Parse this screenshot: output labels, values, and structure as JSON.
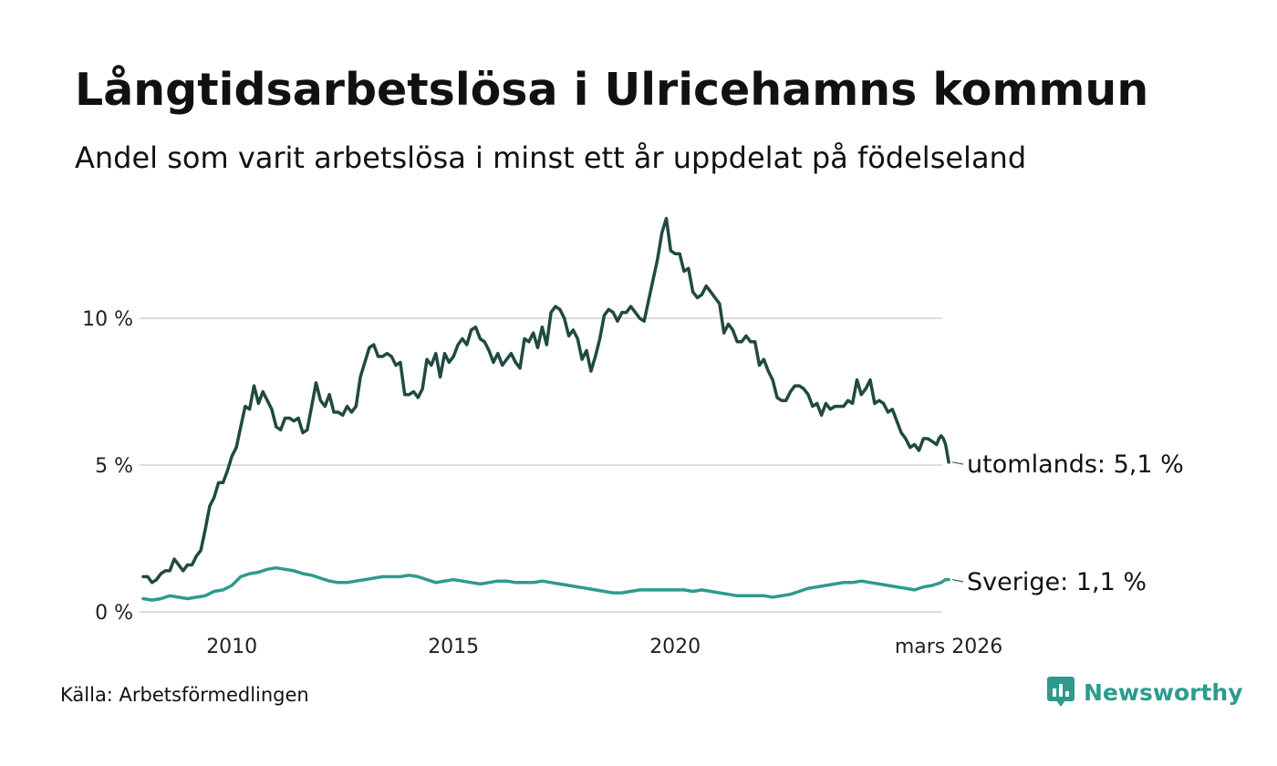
{
  "title": "Långtidsarbetslösa i Ulricehamns kommun",
  "subtitle": "Andel som varit arbetslösa i minst ett år uppdelat på födelseland",
  "source": "Källa: Arbetsförmedlingen",
  "brand": {
    "name": "Newsworthy",
    "icon": "newsworthy-logo-icon",
    "color": "#2e9a8e"
  },
  "chart_data": {
    "type": "line",
    "title": "Långtidsarbetslösa i Ulricehamns kommun",
    "xlabel": "",
    "ylabel": "",
    "ylim": [
      0,
      14
    ],
    "grid": true,
    "y_ticks": [
      {
        "value": 0,
        "label": "0 %"
      },
      {
        "value": 5,
        "label": "5 %"
      },
      {
        "value": 10,
        "label": "10 %"
      }
    ],
    "x_ticks": [
      {
        "value": 2010,
        "label": "2010"
      },
      {
        "value": 2015,
        "label": "2015"
      },
      {
        "value": 2020,
        "label": "2020"
      },
      {
        "value": 2026.17,
        "label": "mars 2026"
      }
    ],
    "series": [
      {
        "name": "utomlands",
        "label": "utomlands: 5,1 %",
        "color": "#1f4a42",
        "points": [
          [
            2008.0,
            1.2
          ],
          [
            2008.1,
            1.2
          ],
          [
            2008.2,
            1.0
          ],
          [
            2008.3,
            1.1
          ],
          [
            2008.4,
            1.3
          ],
          [
            2008.5,
            1.4
          ],
          [
            2008.6,
            1.4
          ],
          [
            2008.7,
            1.8
          ],
          [
            2008.8,
            1.6
          ],
          [
            2008.9,
            1.4
          ],
          [
            2009.0,
            1.6
          ],
          [
            2009.1,
            1.6
          ],
          [
            2009.2,
            1.9
          ],
          [
            2009.3,
            2.1
          ],
          [
            2009.4,
            2.8
          ],
          [
            2009.5,
            3.6
          ],
          [
            2009.6,
            3.9
          ],
          [
            2009.7,
            4.4
          ],
          [
            2009.8,
            4.4
          ],
          [
            2009.9,
            4.8
          ],
          [
            2010.0,
            5.3
          ],
          [
            2010.1,
            5.6
          ],
          [
            2010.2,
            6.3
          ],
          [
            2010.3,
            7.0
          ],
          [
            2010.4,
            6.9
          ],
          [
            2010.5,
            7.7
          ],
          [
            2010.6,
            7.1
          ],
          [
            2010.7,
            7.5
          ],
          [
            2010.8,
            7.2
          ],
          [
            2010.9,
            6.9
          ],
          [
            2011.0,
            6.3
          ],
          [
            2011.1,
            6.2
          ],
          [
            2011.2,
            6.6
          ],
          [
            2011.3,
            6.6
          ],
          [
            2011.4,
            6.5
          ],
          [
            2011.5,
            6.6
          ],
          [
            2011.6,
            6.1
          ],
          [
            2011.7,
            6.2
          ],
          [
            2011.8,
            7.0
          ],
          [
            2011.9,
            7.8
          ],
          [
            2012.0,
            7.2
          ],
          [
            2012.1,
            7.0
          ],
          [
            2012.2,
            7.4
          ],
          [
            2012.3,
            6.8
          ],
          [
            2012.4,
            6.8
          ],
          [
            2012.5,
            6.7
          ],
          [
            2012.6,
            7.0
          ],
          [
            2012.7,
            6.8
          ],
          [
            2012.8,
            7.0
          ],
          [
            2012.9,
            8.0
          ],
          [
            2013.0,
            8.5
          ],
          [
            2013.1,
            9.0
          ],
          [
            2013.2,
            9.1
          ],
          [
            2013.3,
            8.7
          ],
          [
            2013.4,
            8.7
          ],
          [
            2013.5,
            8.8
          ],
          [
            2013.6,
            8.7
          ],
          [
            2013.7,
            8.4
          ],
          [
            2013.8,
            8.5
          ],
          [
            2013.9,
            7.4
          ],
          [
            2014.0,
            7.4
          ],
          [
            2014.1,
            7.5
          ],
          [
            2014.2,
            7.3
          ],
          [
            2014.3,
            7.6
          ],
          [
            2014.4,
            8.6
          ],
          [
            2014.5,
            8.4
          ],
          [
            2014.6,
            8.8
          ],
          [
            2014.7,
            8.0
          ],
          [
            2014.8,
            8.8
          ],
          [
            2014.9,
            8.5
          ],
          [
            2015.0,
            8.7
          ],
          [
            2015.1,
            9.1
          ],
          [
            2015.2,
            9.3
          ],
          [
            2015.3,
            9.1
          ],
          [
            2015.4,
            9.6
          ],
          [
            2015.5,
            9.7
          ],
          [
            2015.6,
            9.3
          ],
          [
            2015.7,
            9.2
          ],
          [
            2015.8,
            8.9
          ],
          [
            2015.9,
            8.5
          ],
          [
            2016.0,
            8.8
          ],
          [
            2016.1,
            8.4
          ],
          [
            2016.2,
            8.6
          ],
          [
            2016.3,
            8.8
          ],
          [
            2016.4,
            8.5
          ],
          [
            2016.5,
            8.3
          ],
          [
            2016.6,
            9.3
          ],
          [
            2016.7,
            9.2
          ],
          [
            2016.8,
            9.5
          ],
          [
            2016.9,
            9.0
          ],
          [
            2017.0,
            9.7
          ],
          [
            2017.1,
            9.1
          ],
          [
            2017.2,
            10.2
          ],
          [
            2017.3,
            10.4
          ],
          [
            2017.4,
            10.3
          ],
          [
            2017.5,
            10.0
          ],
          [
            2017.6,
            9.4
          ],
          [
            2017.7,
            9.6
          ],
          [
            2017.8,
            9.3
          ],
          [
            2017.9,
            8.6
          ],
          [
            2018.0,
            8.9
          ],
          [
            2018.1,
            8.2
          ],
          [
            2018.2,
            8.7
          ],
          [
            2018.3,
            9.3
          ],
          [
            2018.4,
            10.1
          ],
          [
            2018.5,
            10.3
          ],
          [
            2018.6,
            10.2
          ],
          [
            2018.7,
            9.9
          ],
          [
            2018.8,
            10.2
          ],
          [
            2018.9,
            10.2
          ],
          [
            2019.0,
            10.4
          ],
          [
            2019.1,
            10.2
          ],
          [
            2019.2,
            10.0
          ],
          [
            2019.3,
            9.9
          ],
          [
            2019.4,
            10.6
          ],
          [
            2019.5,
            11.3
          ],
          [
            2019.6,
            12.0
          ],
          [
            2019.7,
            12.9
          ],
          [
            2019.8,
            13.4
          ],
          [
            2019.9,
            12.3
          ],
          [
            2020.0,
            12.2
          ],
          [
            2020.1,
            12.2
          ],
          [
            2020.2,
            11.6
          ],
          [
            2020.3,
            11.7
          ],
          [
            2020.4,
            10.9
          ],
          [
            2020.5,
            10.7
          ],
          [
            2020.6,
            10.8
          ],
          [
            2020.7,
            11.1
          ],
          [
            2020.8,
            10.9
          ],
          [
            2020.9,
            10.7
          ],
          [
            2021.0,
            10.5
          ],
          [
            2021.1,
            9.5
          ],
          [
            2021.2,
            9.8
          ],
          [
            2021.3,
            9.6
          ],
          [
            2021.4,
            9.2
          ],
          [
            2021.5,
            9.2
          ],
          [
            2021.6,
            9.4
          ],
          [
            2021.7,
            9.2
          ],
          [
            2021.8,
            9.2
          ],
          [
            2021.9,
            8.4
          ],
          [
            2022.0,
            8.6
          ],
          [
            2022.1,
            8.2
          ],
          [
            2022.2,
            7.9
          ],
          [
            2022.3,
            7.3
          ],
          [
            2022.4,
            7.2
          ],
          [
            2022.5,
            7.2
          ],
          [
            2022.6,
            7.5
          ],
          [
            2022.7,
            7.7
          ],
          [
            2022.8,
            7.7
          ],
          [
            2022.9,
            7.6
          ],
          [
            2023.0,
            7.4
          ],
          [
            2023.1,
            7.0
          ],
          [
            2023.2,
            7.1
          ],
          [
            2023.3,
            6.7
          ],
          [
            2023.4,
            7.1
          ],
          [
            2023.5,
            6.9
          ],
          [
            2023.6,
            7.0
          ],
          [
            2023.7,
            7.0
          ],
          [
            2023.8,
            7.0
          ],
          [
            2023.9,
            7.2
          ],
          [
            2024.0,
            7.1
          ],
          [
            2024.1,
            7.9
          ],
          [
            2024.2,
            7.4
          ],
          [
            2024.3,
            7.6
          ],
          [
            2024.4,
            7.9
          ],
          [
            2024.5,
            7.1
          ],
          [
            2024.6,
            7.2
          ],
          [
            2024.7,
            7.1
          ],
          [
            2024.8,
            6.8
          ],
          [
            2024.9,
            6.9
          ],
          [
            2025.0,
            6.5
          ],
          [
            2025.1,
            6.1
          ],
          [
            2025.2,
            5.9
          ],
          [
            2025.3,
            5.6
          ],
          [
            2025.4,
            5.7
          ],
          [
            2025.5,
            5.5
          ],
          [
            2025.6,
            5.9
          ],
          [
            2025.7,
            5.9
          ],
          [
            2025.8,
            5.8
          ],
          [
            2025.9,
            5.7
          ],
          [
            2025.95,
            5.9
          ],
          [
            2026.0,
            6.0
          ],
          [
            2026.05,
            5.9
          ],
          [
            2026.1,
            5.7
          ],
          [
            2026.17,
            5.1
          ]
        ]
      },
      {
        "name": "Sverige",
        "label": "Sverige: 1,1 %",
        "color": "#2e9a8e",
        "points": [
          [
            2008.0,
            0.45
          ],
          [
            2008.2,
            0.4
          ],
          [
            2008.4,
            0.45
          ],
          [
            2008.6,
            0.55
          ],
          [
            2008.8,
            0.5
          ],
          [
            2009.0,
            0.45
          ],
          [
            2009.2,
            0.5
          ],
          [
            2009.4,
            0.55
          ],
          [
            2009.6,
            0.7
          ],
          [
            2009.8,
            0.75
          ],
          [
            2010.0,
            0.9
          ],
          [
            2010.2,
            1.2
          ],
          [
            2010.4,
            1.3
          ],
          [
            2010.6,
            1.35
          ],
          [
            2010.8,
            1.45
          ],
          [
            2011.0,
            1.5
          ],
          [
            2011.2,
            1.45
          ],
          [
            2011.4,
            1.4
          ],
          [
            2011.6,
            1.3
          ],
          [
            2011.8,
            1.25
          ],
          [
            2012.0,
            1.15
          ],
          [
            2012.2,
            1.05
          ],
          [
            2012.4,
            1.0
          ],
          [
            2012.6,
            1.0
          ],
          [
            2012.8,
            1.05
          ],
          [
            2013.0,
            1.1
          ],
          [
            2013.2,
            1.15
          ],
          [
            2013.4,
            1.2
          ],
          [
            2013.6,
            1.2
          ],
          [
            2013.8,
            1.2
          ],
          [
            2014.0,
            1.25
          ],
          [
            2014.2,
            1.2
          ],
          [
            2014.4,
            1.1
          ],
          [
            2014.6,
            1.0
          ],
          [
            2014.8,
            1.05
          ],
          [
            2015.0,
            1.1
          ],
          [
            2015.2,
            1.05
          ],
          [
            2015.4,
            1.0
          ],
          [
            2015.6,
            0.95
          ],
          [
            2015.8,
            1.0
          ],
          [
            2016.0,
            1.05
          ],
          [
            2016.2,
            1.05
          ],
          [
            2016.4,
            1.0
          ],
          [
            2016.6,
            1.0
          ],
          [
            2016.8,
            1.0
          ],
          [
            2017.0,
            1.05
          ],
          [
            2017.2,
            1.0
          ],
          [
            2017.4,
            0.95
          ],
          [
            2017.6,
            0.9
          ],
          [
            2017.8,
            0.85
          ],
          [
            2018.0,
            0.8
          ],
          [
            2018.2,
            0.75
          ],
          [
            2018.4,
            0.7
          ],
          [
            2018.6,
            0.65
          ],
          [
            2018.8,
            0.65
          ],
          [
            2019.0,
            0.7
          ],
          [
            2019.2,
            0.75
          ],
          [
            2019.4,
            0.75
          ],
          [
            2019.6,
            0.75
          ],
          [
            2019.8,
            0.75
          ],
          [
            2020.0,
            0.75
          ],
          [
            2020.2,
            0.75
          ],
          [
            2020.4,
            0.7
          ],
          [
            2020.6,
            0.75
          ],
          [
            2020.8,
            0.7
          ],
          [
            2021.0,
            0.65
          ],
          [
            2021.2,
            0.6
          ],
          [
            2021.4,
            0.55
          ],
          [
            2021.6,
            0.55
          ],
          [
            2021.8,
            0.55
          ],
          [
            2022.0,
            0.55
          ],
          [
            2022.2,
            0.5
          ],
          [
            2022.4,
            0.55
          ],
          [
            2022.6,
            0.6
          ],
          [
            2022.8,
            0.7
          ],
          [
            2023.0,
            0.8
          ],
          [
            2023.2,
            0.85
          ],
          [
            2023.4,
            0.9
          ],
          [
            2023.6,
            0.95
          ],
          [
            2023.8,
            1.0
          ],
          [
            2024.0,
            1.0
          ],
          [
            2024.2,
            1.05
          ],
          [
            2024.4,
            1.0
          ],
          [
            2024.6,
            0.95
          ],
          [
            2024.8,
            0.9
          ],
          [
            2025.0,
            0.85
          ],
          [
            2025.2,
            0.8
          ],
          [
            2025.4,
            0.75
          ],
          [
            2025.6,
            0.85
          ],
          [
            2025.8,
            0.9
          ],
          [
            2025.9,
            0.95
          ],
          [
            2026.0,
            1.0
          ],
          [
            2026.05,
            1.05
          ],
          [
            2026.1,
            1.1
          ],
          [
            2026.17,
            1.1
          ]
        ]
      }
    ]
  }
}
